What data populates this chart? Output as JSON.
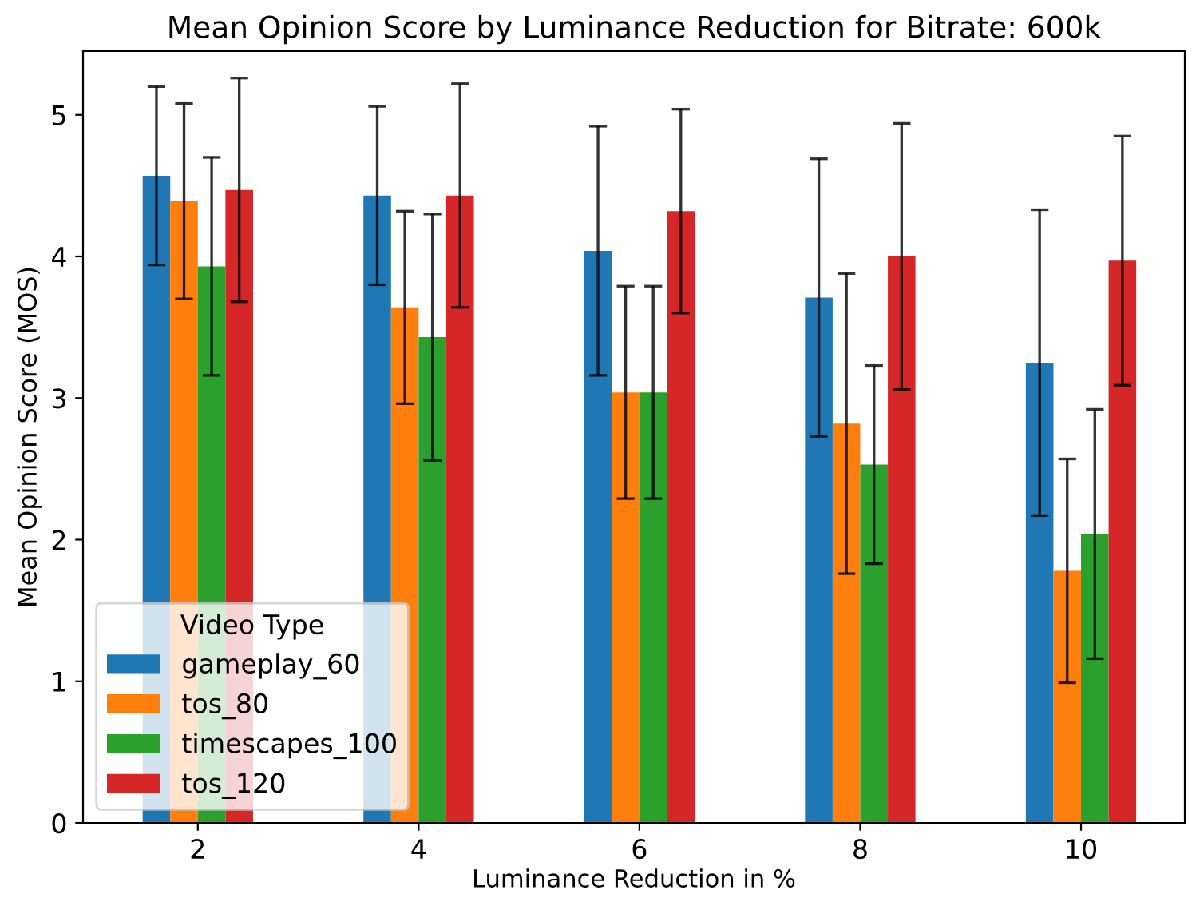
{
  "chart_data": {
    "type": "bar",
    "title": "Mean Opinion Score by Luminance Reduction for Bitrate: 600k",
    "xlabel": "Luminance Reduction in %",
    "ylabel": "Mean Opinion Score (MOS)",
    "legend_title": "Video Type",
    "categories": [
      "2",
      "4",
      "6",
      "8",
      "10"
    ],
    "series": [
      {
        "name": "gameplay_60",
        "color": "#1f77b4",
        "values": [
          4.57,
          4.43,
          4.04,
          3.71,
          3.25
        ],
        "errors": [
          0.63,
          0.63,
          0.88,
          0.98,
          1.08
        ]
      },
      {
        "name": "tos_80",
        "color": "#ff7f0e",
        "values": [
          4.39,
          3.64,
          3.04,
          2.82,
          1.78
        ],
        "errors": [
          0.69,
          0.68,
          0.75,
          1.06,
          0.79
        ]
      },
      {
        "name": "timescapes_100",
        "color": "#2ca02c",
        "values": [
          3.93,
          3.43,
          3.04,
          2.53,
          2.04
        ],
        "errors": [
          0.77,
          0.87,
          0.75,
          0.7,
          0.88
        ]
      },
      {
        "name": "tos_120",
        "color": "#d62728",
        "values": [
          4.47,
          4.43,
          4.32,
          4.0,
          3.97
        ],
        "errors": [
          0.79,
          0.79,
          0.72,
          0.94,
          0.88
        ]
      }
    ],
    "ylim": [
      0,
      5.45
    ],
    "yticks": [
      0,
      1,
      2,
      3,
      4,
      5
    ],
    "grid": false,
    "legend": "bottom left"
  }
}
